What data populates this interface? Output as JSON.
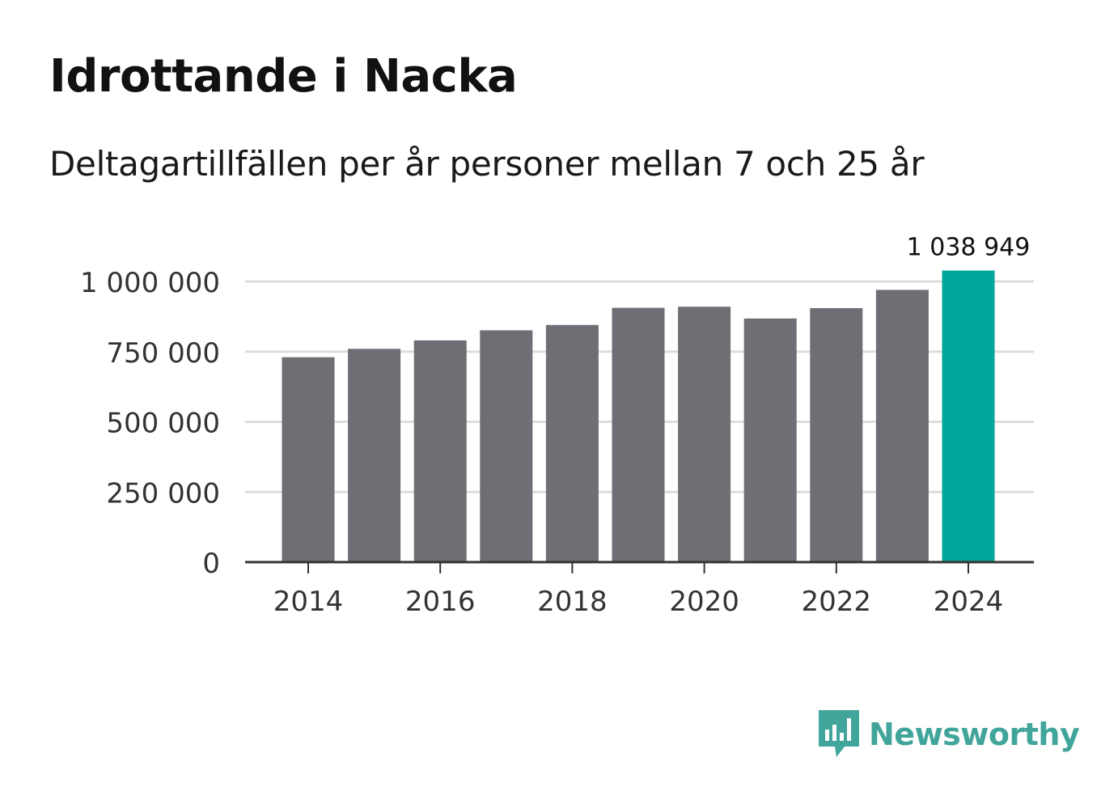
{
  "title": "Idrottande i Nacka",
  "subtitle": "Deltagartillfällen per år personer mellan 7 och 25 år",
  "brand": {
    "name": "Newsworthy",
    "icon": "bar-chart-speech-bubble-icon",
    "color": "#41a59b"
  },
  "colors": {
    "bar": "#6f6e75",
    "highlight": "#00a59b",
    "grid": "#dddddd",
    "axis": "#333333",
    "text": "#333333"
  },
  "chart_data": {
    "type": "bar",
    "title": "Idrottande i Nacka",
    "subtitle": "Deltagartillfällen per år personer mellan 7 och 25 år",
    "xlabel": "",
    "ylabel": "",
    "categories": [
      2014,
      2015,
      2016,
      2017,
      2018,
      2019,
      2020,
      2021,
      2022,
      2023,
      2024
    ],
    "values": [
      730000,
      760000,
      790000,
      826000,
      845000,
      906000,
      910000,
      868000,
      905000,
      970000,
      1038949
    ],
    "highlight_index": 10,
    "highlight_label": "1 038 949",
    "ylim": [
      0,
      1000000
    ],
    "yticks": [
      0,
      250000,
      500000,
      750000,
      1000000
    ],
    "ytick_labels": [
      "0",
      "250 000",
      "500 000",
      "750 000",
      "1 000 000"
    ],
    "xticks": [
      2014,
      2016,
      2018,
      2020,
      2022,
      2024
    ],
    "xtick_labels": [
      "2014",
      "2016",
      "2018",
      "2020",
      "2022",
      "2024"
    ],
    "grid": true,
    "legend": "none"
  }
}
